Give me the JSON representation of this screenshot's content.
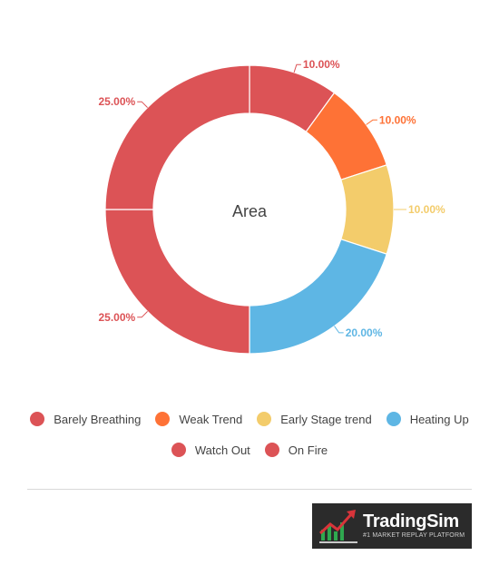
{
  "chart_data": {
    "type": "pie",
    "center_label": "Area",
    "slices": [
      {
        "name": "Barely Breathing",
        "value": 10,
        "label": "10.00%",
        "color": "#dc5356"
      },
      {
        "name": "Weak Trend",
        "value": 10,
        "label": "10.00%",
        "color": "#fe7236"
      },
      {
        "name": "Early Stage trend",
        "value": 10,
        "label": "10.00%",
        "color": "#f3cc6b"
      },
      {
        "name": "Heating Up",
        "value": 20,
        "label": "20.00%",
        "color": "#5eb6e4"
      },
      {
        "name": "Watch Out",
        "value": 25,
        "label": "25.00%",
        "color": "#dc5356"
      },
      {
        "name": "On Fire",
        "value": 25,
        "label": "25.00%",
        "color": "#dc5356"
      }
    ],
    "legend_position": "bottom"
  },
  "legend": {
    "row1": [
      "Barely Breathing",
      "Weak Trend",
      "Early Stage trend",
      "Heating Up"
    ],
    "row2": [
      "Watch Out",
      "On Fire"
    ]
  },
  "logo": {
    "name": "TradingSim",
    "tagline": "#1 MARKET REPLAY PLATFORM",
    "icon": "chart-arrow-icon"
  }
}
